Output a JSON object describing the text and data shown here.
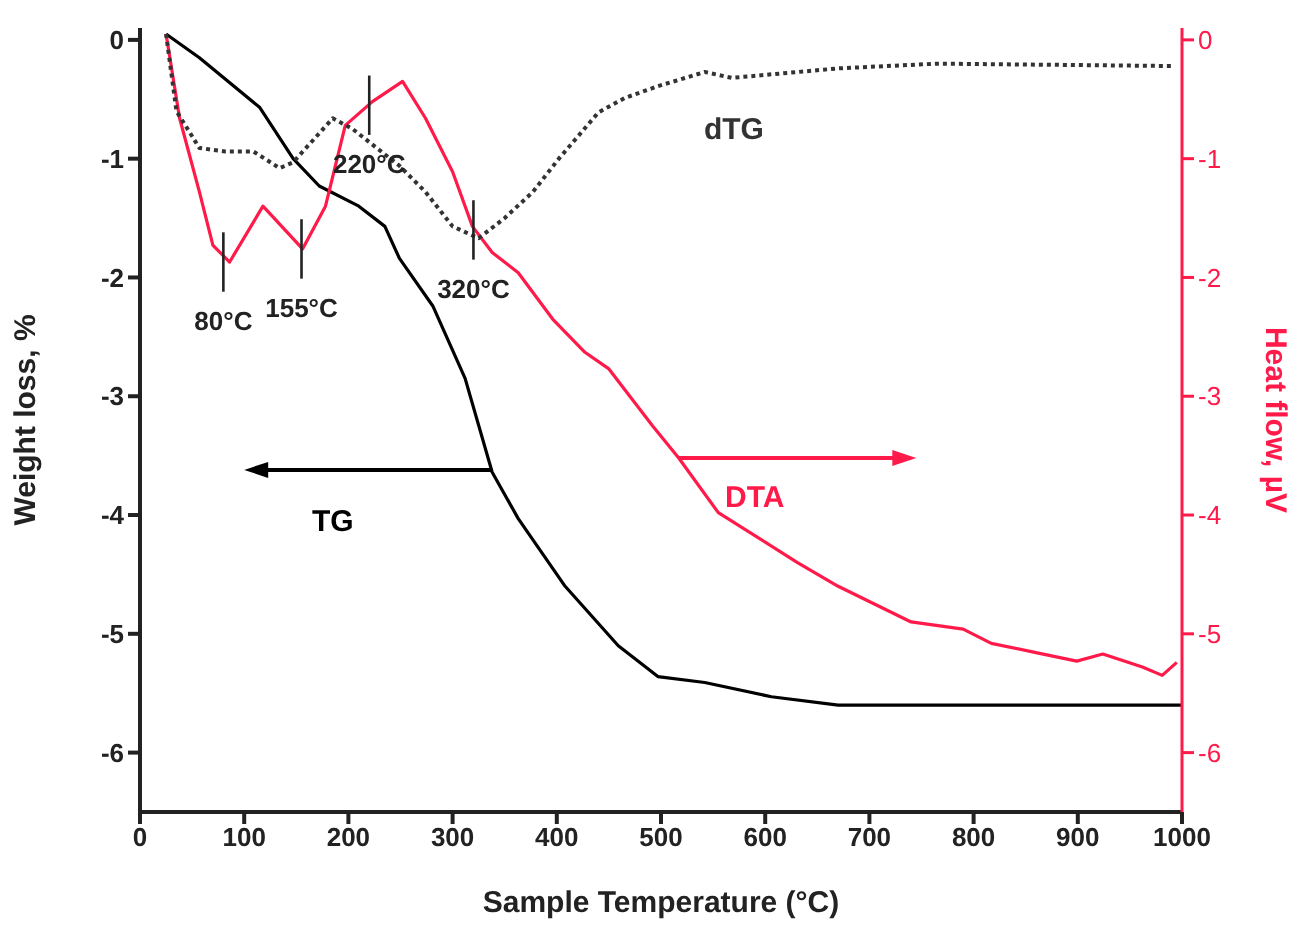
{
  "chart_data": {
    "type": "line",
    "xlabel": "Sample Temperature (°C)",
    "ylabel": "Weight loss, %",
    "y2label": "Heat flow, µV",
    "xlim": [
      0,
      1000
    ],
    "xticks": [
      0,
      100,
      200,
      300,
      400,
      500,
      600,
      700,
      800,
      900,
      1000
    ],
    "ylim": [
      -6.5,
      0.1
    ],
    "yticks": [
      0,
      -1,
      -2,
      -3,
      -4,
      -5,
      -6
    ],
    "y2lim": [
      -6.5,
      0.1
    ],
    "y2ticks": [
      0,
      -1,
      -2,
      -3,
      -4,
      -5,
      -6
    ],
    "grid": false,
    "legend": false,
    "marker": "none",
    "series": [
      {
        "name": "TG",
        "color": "#000000",
        "line_style": "solid",
        "x": [
          25,
          57,
          115,
          147,
          172,
          210,
          235,
          249,
          281,
          312,
          338,
          363,
          408,
          459,
          497,
          542,
          606,
          670,
          800,
          1000
        ],
        "values": [
          0.05,
          -0.15,
          -0.57,
          -1.0,
          -1.23,
          -1.4,
          -1.57,
          -1.84,
          -2.24,
          -2.85,
          -3.64,
          -4.03,
          -4.6,
          -5.1,
          -5.36,
          -5.41,
          -5.53,
          -5.6,
          -5.6,
          -5.6
        ]
      },
      {
        "name": "DTA",
        "color": "#ff1a4a",
        "axis": "y2",
        "line_style": "solid",
        "x": [
          25,
          38,
          57,
          70,
          86,
          118,
          156,
          178,
          197,
          223,
          252,
          274,
          300,
          319,
          338,
          363,
          396,
          427,
          450,
          492,
          517,
          555,
          631,
          670,
          740,
          790,
          817,
          861,
          899,
          924,
          962,
          981,
          995
        ],
        "values": [
          0.05,
          -0.66,
          -1.28,
          -1.73,
          -1.87,
          -1.4,
          -1.76,
          -1.4,
          -0.72,
          -0.52,
          -0.35,
          -0.66,
          -1.11,
          -1.57,
          -1.79,
          -1.96,
          -2.35,
          -2.63,
          -2.77,
          -3.25,
          -3.52,
          -3.98,
          -4.4,
          -4.6,
          -4.9,
          -4.96,
          -5.08,
          -5.16,
          -5.23,
          -5.17,
          -5.28,
          -5.35,
          -5.24
        ]
      },
      {
        "name": "dTG",
        "color": "#333333",
        "line_style": "dotted",
        "x": [
          25,
          35,
          57,
          82,
          109,
          134,
          147,
          185,
          204,
          249,
          274,
          300,
          325,
          350,
          377,
          402,
          440,
          465,
          497,
          542,
          568,
          670,
          765,
          990
        ],
        "values": [
          0.05,
          -0.6,
          -0.91,
          -0.94,
          -0.94,
          -1.08,
          -1.03,
          -0.66,
          -0.75,
          -1.06,
          -1.28,
          -1.57,
          -1.67,
          -1.5,
          -1.28,
          -1.0,
          -0.61,
          -0.49,
          -0.39,
          -0.27,
          -0.32,
          -0.24,
          -0.2,
          -0.22
        ]
      }
    ],
    "annotations": [
      {
        "text": "80°C",
        "x": 80,
        "y": -1.87
      },
      {
        "text": "155°C",
        "x": 155,
        "y": -1.76
      },
      {
        "text": "220°C",
        "x": 220,
        "y": -0.55
      },
      {
        "text": "320°C",
        "x": 320,
        "y": -1.6
      }
    ]
  }
}
